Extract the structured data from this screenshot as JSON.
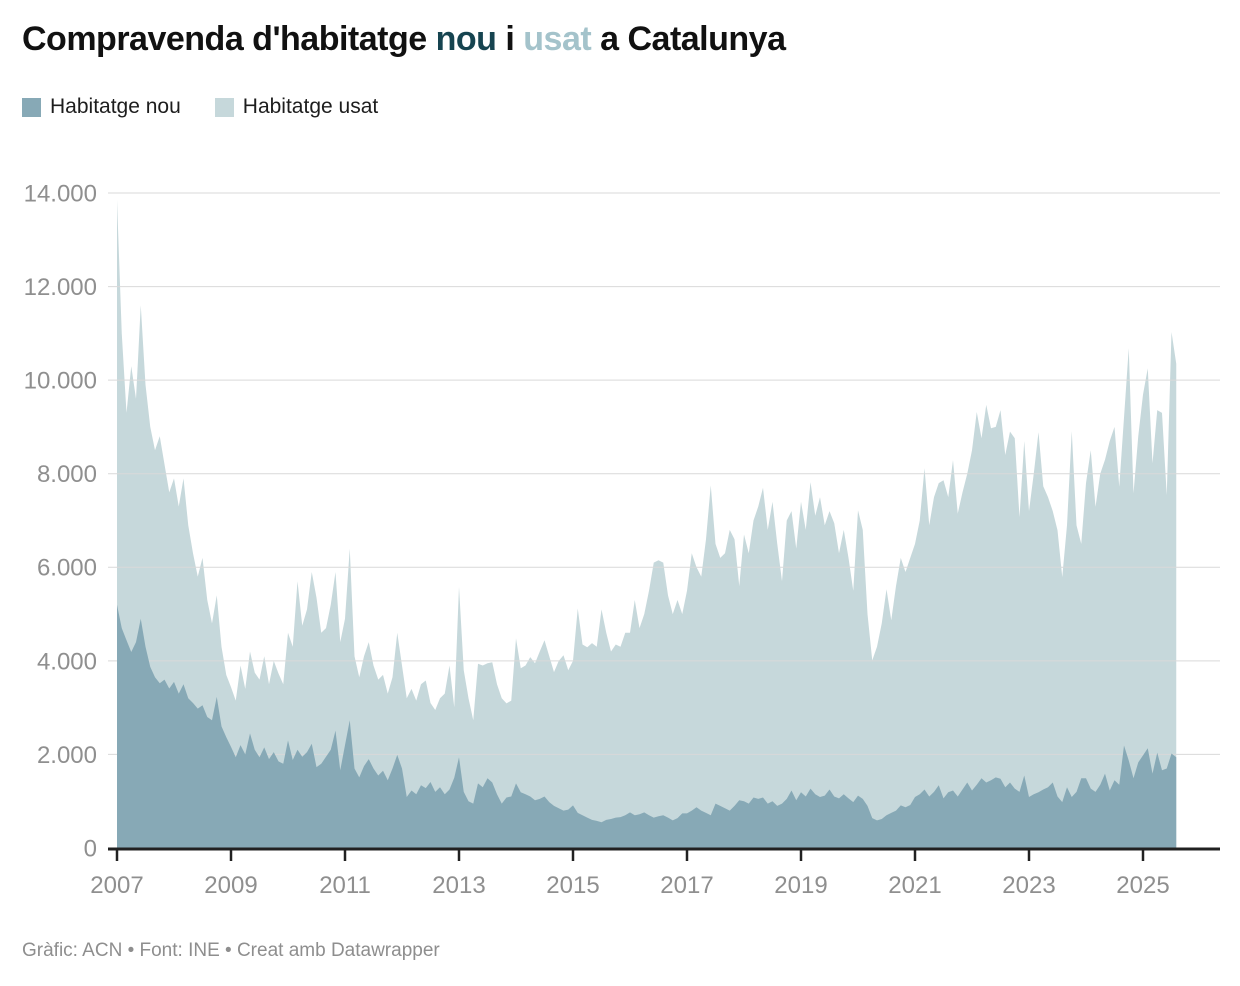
{
  "title": {
    "prefix": "Compravenda d'habitatge ",
    "highlight_new": "nou",
    "connector": " i ",
    "highlight_used": "usat",
    "suffix": " a Catalunya"
  },
  "legend": {
    "items": [
      {
        "label": "Habitatge nou",
        "color": "#87a9b6"
      },
      {
        "label": "Habitatge usat",
        "color": "#c6d8db"
      }
    ]
  },
  "footer": {
    "text": "Gràfic: ACN • Font: INE • Creat amb Datawrapper"
  },
  "colors": {
    "area_new": "#87a9b6",
    "area_used": "#c6d8db",
    "title_new": "#164450",
    "title_used": "#a4c3cb",
    "gridline": "#d9d9d9",
    "axis": "#212121",
    "tick_label": "#8f8f8f"
  },
  "chart_data": {
    "type": "area",
    "stacked": true,
    "title": "Compravenda d'habitatge nou i usat a Catalunya",
    "xlabel": "",
    "ylabel": "",
    "x_start_year": 2007,
    "x_start_month": 1,
    "months_per_point": 1,
    "x_end_label": "ago 2025",
    "ylim": [
      0,
      14000
    ],
    "grid": true,
    "legend_position": "top-left",
    "y_ticks": [
      0,
      2000,
      4000,
      6000,
      8000,
      10000,
      12000,
      14000
    ],
    "y_tick_labels": [
      "0",
      "2.000",
      "4.000",
      "6.000",
      "8.000",
      "10.000",
      "12.000",
      "14.000"
    ],
    "x_tick_years": [
      2007,
      2009,
      2011,
      2013,
      2015,
      2017,
      2019,
      2021,
      2023,
      2025
    ],
    "series": [
      {
        "name": "Habitatge nou",
        "color": "#87a9b6",
        "values": [
          5200,
          4700,
          4440,
          4190,
          4400,
          4900,
          4300,
          3870,
          3650,
          3520,
          3600,
          3410,
          3550,
          3300,
          3500,
          3200,
          3100,
          2980,
          3050,
          2800,
          2730,
          3230,
          2600,
          2370,
          2160,
          1940,
          2200,
          2000,
          2450,
          2100,
          1940,
          2150,
          1900,
          2050,
          1850,
          1800,
          2300,
          1880,
          2100,
          1950,
          2050,
          2230,
          1730,
          1800,
          1950,
          2100,
          2510,
          1660,
          2200,
          2730,
          1700,
          1510,
          1750,
          1900,
          1700,
          1550,
          1650,
          1450,
          1700,
          1990,
          1700,
          1090,
          1230,
          1150,
          1340,
          1280,
          1410,
          1200,
          1300,
          1150,
          1250,
          1500,
          1940,
          1200,
          1000,
          950,
          1380,
          1300,
          1490,
          1400,
          1150,
          950,
          1080,
          1100,
          1380,
          1190,
          1150,
          1100,
          1020,
          1050,
          1100,
          980,
          900,
          850,
          800,
          820,
          910,
          750,
          700,
          650,
          600,
          580,
          550,
          600,
          620,
          650,
          660,
          700,
          760,
          700,
          720,
          760,
          700,
          650,
          680,
          700,
          650,
          590,
          640,
          740,
          740,
          800,
          870,
          800,
          750,
          700,
          950,
          900,
          850,
          800,
          900,
          1020,
          1000,
          950,
          1080,
          1050,
          1080,
          950,
          1000,
          900,
          950,
          1050,
          1230,
          1020,
          1190,
          1100,
          1270,
          1150,
          1090,
          1120,
          1250,
          1100,
          1060,
          1150,
          1060,
          980,
          1120,
          1050,
          900,
          640,
          590,
          620,
          700,
          750,
          800,
          910,
          870,
          920,
          1090,
          1150,
          1250,
          1100,
          1200,
          1340,
          1060,
          1190,
          1230,
          1100,
          1250,
          1400,
          1230,
          1350,
          1490,
          1400,
          1450,
          1510,
          1480,
          1300,
          1400,
          1270,
          1200,
          1550,
          1090,
          1150,
          1190,
          1250,
          1300,
          1400,
          1100,
          980,
          1300,
          1090,
          1200,
          1490,
          1490,
          1270,
          1200,
          1350,
          1590,
          1230,
          1450,
          1350,
          2190,
          1870,
          1490,
          1830,
          1980,
          2130,
          1590,
          2040,
          1660,
          1700,
          2020,
          1940
        ]
      },
      {
        "name": "Habitatge usat",
        "color": "#c6d8db",
        "values": [
          8650,
          6300,
          4860,
          6110,
          5200,
          6700,
          5600,
          5130,
          4850,
          5280,
          4600,
          4190,
          4350,
          4000,
          4400,
          3700,
          3200,
          2820,
          3150,
          2500,
          2070,
          2170,
          1700,
          1330,
          1280,
          1210,
          1700,
          1400,
          1750,
          1650,
          1660,
          1950,
          1600,
          1950,
          1880,
          1700,
          2300,
          2420,
          3600,
          2800,
          3050,
          3670,
          3620,
          2800,
          2750,
          3100,
          3390,
          2740,
          2700,
          3670,
          2400,
          2140,
          2350,
          2500,
          2200,
          2050,
          2050,
          1850,
          1950,
          2610,
          2200,
          2110,
          2170,
          2000,
          2160,
          2300,
          1690,
          1750,
          1900,
          2150,
          2650,
          1510,
          3640,
          2600,
          2200,
          1780,
          2560,
          2600,
          2460,
          2570,
          2350,
          2250,
          2010,
          2050,
          3100,
          2650,
          2750,
          2980,
          2930,
          3150,
          3340,
          3120,
          2860,
          3150,
          3320,
          2980,
          3090,
          4370,
          3650,
          3640,
          3780,
          3720,
          4550,
          4000,
          3580,
          3700,
          3640,
          3900,
          3840,
          4600,
          3980,
          4240,
          4800,
          5450,
          5470,
          5400,
          4750,
          4410,
          4660,
          4260,
          4760,
          5500,
          5130,
          5000,
          5850,
          7050,
          5550,
          5300,
          5450,
          6000,
          5700,
          4580,
          5700,
          5350,
          5920,
          6250,
          6620,
          5850,
          6400,
          5600,
          4750,
          5950,
          5970,
          5380,
          6210,
          5700,
          6550,
          5950,
          6410,
          5780,
          5950,
          5840,
          5240,
          5650,
          5140,
          4520,
          6100,
          5750,
          4100,
          3370,
          3710,
          4180,
          4830,
          4120,
          4800,
          5290,
          5030,
          5280,
          5410,
          5850,
          6870,
          5800,
          6300,
          6460,
          6800,
          6310,
          7060,
          6050,
          6350,
          6600,
          7270,
          7970,
          7270,
          8070,
          7520,
          7490,
          7880,
          7100,
          7500,
          7490,
          5870,
          7150,
          6110,
          6850,
          7700,
          6480,
          6200,
          5800,
          5690,
          4810,
          5600,
          7820,
          5700,
          5010,
          6310,
          7230,
          6090,
          6650,
          6710,
          7470,
          7550,
          6370,
          7010,
          8810,
          6090,
          6970,
          7710,
          8120,
          6630,
          7320,
          7640,
          5840,
          9010,
          8410
        ]
      }
    ]
  }
}
